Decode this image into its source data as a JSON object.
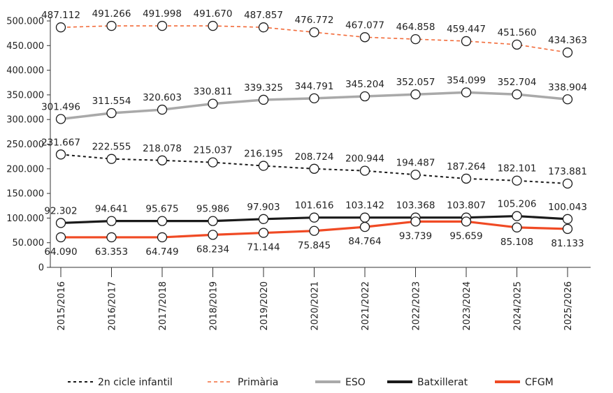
{
  "chart_data": {
    "type": "line",
    "categories": [
      "2015/2016",
      "2016/2017",
      "2017/2018",
      "2018/2019",
      "2019/2020",
      "2020/2021",
      "2021/2022",
      "2022/2023",
      "2023/2024",
      "2024/2025",
      "2025/2026"
    ],
    "ylim": [
      0,
      500000
    ],
    "yticks": [
      0,
      50000,
      100000,
      150000,
      200000,
      250000,
      300000,
      350000,
      400000,
      450000,
      500000
    ],
    "ytick_labels": [
      "0",
      "50.000",
      "100.000",
      "150.000",
      "200.000",
      "250.000",
      "300.000",
      "350.000",
      "400.000",
      "450.000",
      "500.000"
    ],
    "grid": false,
    "legend_position": "bottom",
    "series": [
      {
        "name": "2n cicle infantil",
        "color": "#1a1a1a",
        "style": "dotted",
        "label_position": "above",
        "values": [
          231667,
          222555,
          218078,
          215037,
          216195,
          208724,
          200944,
          194487,
          187264,
          182101,
          173881
        ],
        "plotted": [
          229000,
          220000,
          217000,
          213000,
          206000,
          200000,
          196000,
          188000,
          180000,
          176000,
          170000
        ],
        "labels": [
          "231.667",
          "222.555",
          "218.078",
          "215.037",
          "216.195",
          "208.724",
          "200.944",
          "194.487",
          "187.264",
          "182.101",
          "173.881"
        ]
      },
      {
        "name": "Primària",
        "color": "#f26b3a",
        "style": "dashed",
        "label_position": "above",
        "values": [
          487112,
          491266,
          491998,
          491670,
          487857,
          476772,
          467077,
          464858,
          459447,
          451560,
          434363
        ],
        "plotted": [
          487000,
          490000,
          490000,
          490000,
          487000,
          477000,
          467000,
          463000,
          459000,
          452000,
          436000
        ],
        "labels": [
          "487.112",
          "491.266",
          "491.998",
          "491.670",
          "487.857",
          "476.772",
          "467.077",
          "464.858",
          "459.447",
          "451.560",
          "434.363"
        ]
      },
      {
        "name": "ESO",
        "color": "#a9a9a9",
        "style": "solid",
        "label_position": "above",
        "values": [
          301496,
          311554,
          320603,
          330811,
          339325,
          344791,
          345204,
          352057,
          354099,
          352704,
          338904
        ],
        "plotted": [
          301000,
          313000,
          320000,
          332000,
          340000,
          343000,
          347000,
          351000,
          355000,
          351000,
          341000
        ],
        "labels": [
          "301.496",
          "311.554",
          "320.603",
          "330.811",
          "339.325",
          "344.791",
          "345.204",
          "352.057",
          "354.099",
          "352.704",
          "338.904"
        ]
      },
      {
        "name": "Batxillerat",
        "color": "#1a1a1a",
        "style": "solid",
        "label_position": "above",
        "values": [
          92302,
          94641,
          95675,
          95986,
          97903,
          101616,
          103142,
          103368,
          103807,
          105206,
          100043
        ],
        "plotted": [
          90000,
          94000,
          94000,
          94000,
          98000,
          101000,
          101000,
          101000,
          101000,
          104000,
          98000
        ],
        "labels": [
          "92.302",
          "94.641",
          "95.675",
          "95.986",
          "97.903",
          "101.616",
          "103.142",
          "103.368",
          "103.807",
          "105.206",
          "100.043"
        ]
      },
      {
        "name": "CFGM",
        "color": "#f04a24",
        "style": "solid",
        "label_position": "below",
        "values": [
          64090,
          63353,
          64749,
          68234,
          71144,
          75845,
          84764,
          93739,
          95659,
          85108,
          81133
        ],
        "plotted": [
          61000,
          61000,
          61000,
          66000,
          70000,
          74000,
          82000,
          93000,
          93000,
          81000,
          78000
        ],
        "labels": [
          "64.090",
          "63.353",
          "64.749",
          "68.234",
          "71.144",
          "75.845",
          "84.764",
          "93.739",
          "95.659",
          "85.108",
          "81.133"
        ]
      }
    ]
  }
}
